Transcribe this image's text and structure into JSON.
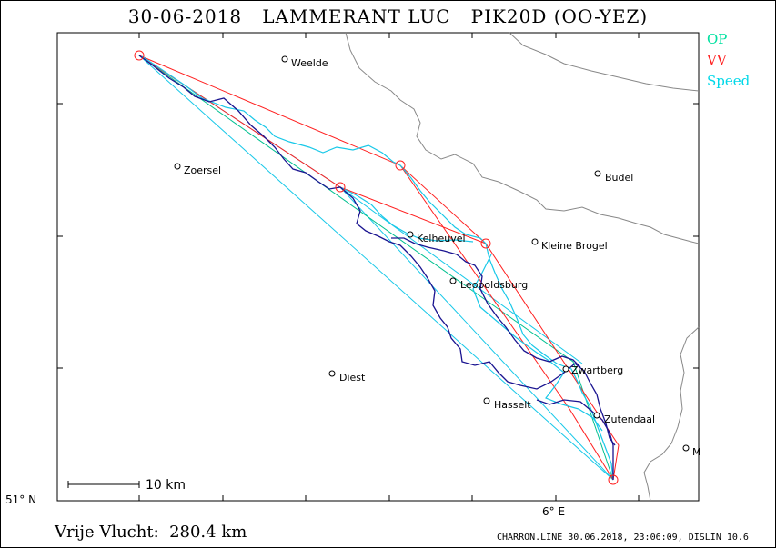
{
  "title": "30-06-2018   LAMMERANT LUC   PIK20D (OO-YEZ)",
  "legend": [
    {
      "label": "OP",
      "color": "#00e0a0"
    },
    {
      "label": "VV",
      "color": "#ff2020"
    },
    {
      "label": "Speed",
      "color": "#00d8e8"
    }
  ],
  "axes": {
    "lat_label": "51° N",
    "lon_label": "6° E"
  },
  "scale": {
    "label": "10 km"
  },
  "towns": [
    {
      "name": "Weelde"
    },
    {
      "name": "Zoersel"
    },
    {
      "name": "Budel"
    },
    {
      "name": "Kelheuvel"
    },
    {
      "name": "Kleine Brogel"
    },
    {
      "name": "Leopoldsburg"
    },
    {
      "name": "Zwartberg"
    },
    {
      "name": "Diest"
    },
    {
      "name": "Hasselt"
    },
    {
      "name": "Zutendaal"
    },
    {
      "name": "M"
    }
  ],
  "distance_text": "Vrije Vlucht:  280.4 km",
  "footer_text": "CHARRON.LINE 30.06.2018, 23:06:09, DISLIN 10.6",
  "colors": {
    "track": "#1a1490",
    "track_cyan": "#18c8e8",
    "border": "#888888",
    "frame": "#000000"
  }
}
